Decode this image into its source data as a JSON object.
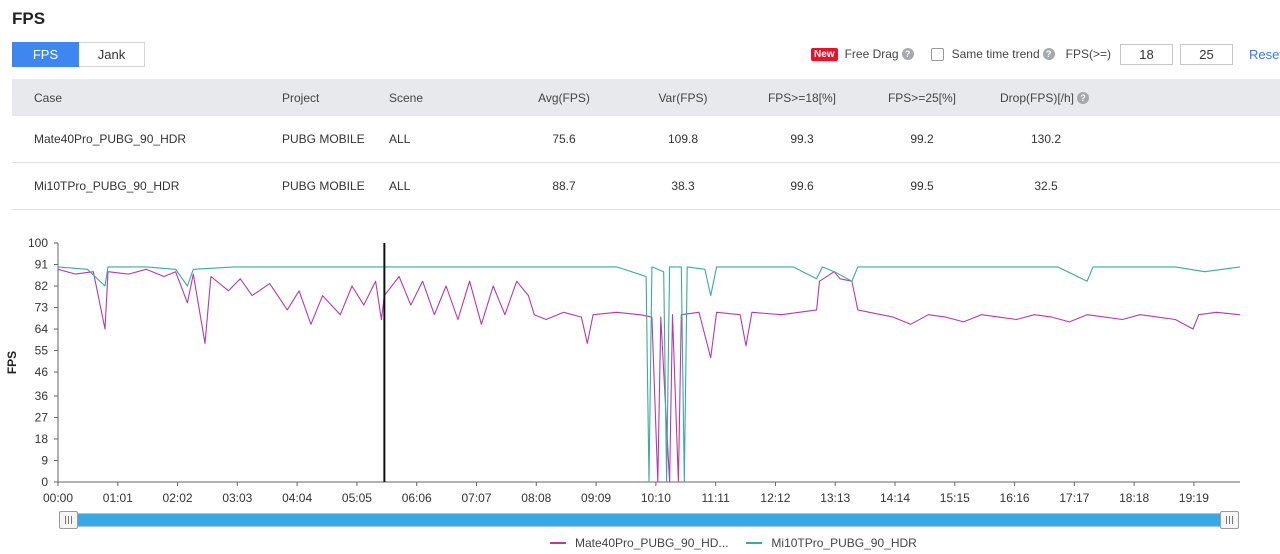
{
  "page": {
    "title": "FPS"
  },
  "tabs": [
    {
      "label": "FPS",
      "active": true
    },
    {
      "label": "Jank",
      "active": false
    }
  ],
  "controls": {
    "new_badge": "New",
    "free_drag": "Free Drag",
    "same_time_trend": "Same time trend",
    "same_time_trend_checked": false,
    "fps_threshold_label": "FPS(>=)",
    "threshold_1": "18",
    "threshold_2": "25",
    "reset": "Reset"
  },
  "table": {
    "headers": [
      "Case",
      "Project",
      "Scene",
      "Avg(FPS)",
      "Var(FPS)",
      "FPS>=18[%]",
      "FPS>=25[%]",
      "Drop(FPS)[/h]"
    ],
    "rows": [
      {
        "case": "Mate40Pro_PUBG_90_HDR",
        "project": "PUBG MOBILE",
        "scene": "ALL",
        "avg": "75.6",
        "var": "109.8",
        "fps18": "99.3",
        "fps25": "99.2",
        "drop": "130.2"
      },
      {
        "case": "Mi10TPro_PUBG_90_HDR",
        "project": "PUBG MOBILE",
        "scene": "ALL",
        "avg": "88.7",
        "var": "38.3",
        "fps18": "99.6",
        "fps25": "99.5",
        "drop": "32.5"
      }
    ]
  },
  "chart_data": {
    "type": "line",
    "ylabel": "FPS",
    "xlabel": "",
    "ylim": [
      0,
      100
    ],
    "yticks": [
      "0",
      "9",
      "18",
      "27",
      "36",
      "46",
      "55",
      "64",
      "73",
      "82",
      "91",
      "100"
    ],
    "xticks": [
      "00:00",
      "01:01",
      "02:02",
      "03:03",
      "04:04",
      "05:05",
      "06:06",
      "07:07",
      "08:08",
      "09:09",
      "10:10",
      "11:11",
      "12:12",
      "13:13",
      "14:14",
      "15:15",
      "16:16",
      "17:17",
      "18:18",
      "19:19"
    ],
    "duration_min": 20.1,
    "cursor_min": 5.55,
    "grid": false,
    "legend_position": "bottom",
    "series": [
      {
        "name": "Mate40Pro_PUBG_90_HD...",
        "color": "#b43ab0",
        "points": [
          [
            0,
            89
          ],
          [
            0.3,
            87
          ],
          [
            0.6,
            88
          ],
          [
            0.8,
            64
          ],
          [
            0.85,
            88
          ],
          [
            1.2,
            87
          ],
          [
            1.5,
            89
          ],
          [
            1.8,
            86
          ],
          [
            2.0,
            88
          ],
          [
            2.2,
            75
          ],
          [
            2.3,
            87
          ],
          [
            2.5,
            58
          ],
          [
            2.6,
            86
          ],
          [
            2.9,
            80
          ],
          [
            3.1,
            85
          ],
          [
            3.3,
            78
          ],
          [
            3.6,
            83
          ],
          [
            3.9,
            72
          ],
          [
            4.1,
            80
          ],
          [
            4.3,
            66
          ],
          [
            4.5,
            78
          ],
          [
            4.8,
            70
          ],
          [
            5.0,
            82
          ],
          [
            5.2,
            74
          ],
          [
            5.4,
            84
          ],
          [
            5.5,
            68
          ],
          [
            5.55,
            78
          ],
          [
            5.8,
            86
          ],
          [
            6.0,
            74
          ],
          [
            6.2,
            84
          ],
          [
            6.4,
            70
          ],
          [
            6.6,
            82
          ],
          [
            6.8,
            68
          ],
          [
            7.0,
            84
          ],
          [
            7.2,
            66
          ],
          [
            7.4,
            82
          ],
          [
            7.6,
            70
          ],
          [
            7.8,
            84
          ],
          [
            8.0,
            78
          ],
          [
            8.1,
            70
          ],
          [
            8.3,
            68
          ],
          [
            8.6,
            71
          ],
          [
            8.9,
            69
          ],
          [
            9.0,
            58
          ],
          [
            9.1,
            70
          ],
          [
            9.5,
            71
          ],
          [
            9.9,
            70
          ],
          [
            10.1,
            69
          ],
          [
            10.2,
            0
          ],
          [
            10.25,
            69
          ],
          [
            10.4,
            0
          ],
          [
            10.45,
            70
          ],
          [
            10.55,
            0
          ],
          [
            10.6,
            70
          ],
          [
            10.9,
            71
          ],
          [
            11.1,
            52
          ],
          [
            11.2,
            71
          ],
          [
            11.6,
            70
          ],
          [
            11.7,
            57
          ],
          [
            11.8,
            71
          ],
          [
            12.3,
            70
          ],
          [
            12.6,
            71
          ],
          [
            12.9,
            72
          ],
          [
            12.95,
            84
          ],
          [
            13.2,
            88
          ],
          [
            13.3,
            85
          ],
          [
            13.5,
            84
          ],
          [
            13.6,
            72
          ],
          [
            13.8,
            71
          ],
          [
            14.2,
            69
          ],
          [
            14.5,
            66
          ],
          [
            14.8,
            70
          ],
          [
            15.1,
            69
          ],
          [
            15.4,
            67
          ],
          [
            15.7,
            70
          ],
          [
            16.0,
            69
          ],
          [
            16.3,
            68
          ],
          [
            16.6,
            70
          ],
          [
            16.9,
            69
          ],
          [
            17.2,
            67
          ],
          [
            17.5,
            70
          ],
          [
            17.8,
            69
          ],
          [
            18.1,
            68
          ],
          [
            18.4,
            70
          ],
          [
            18.7,
            69
          ],
          [
            19.0,
            68
          ],
          [
            19.3,
            64
          ],
          [
            19.4,
            70
          ],
          [
            19.7,
            71
          ],
          [
            20.1,
            70
          ]
        ]
      },
      {
        "name": "Mi10TPro_PUBG_90_HDR",
        "color": "#3aab9c",
        "points": [
          [
            0,
            90
          ],
          [
            0.5,
            89
          ],
          [
            0.8,
            82
          ],
          [
            0.85,
            90
          ],
          [
            1.5,
            90
          ],
          [
            2.0,
            89
          ],
          [
            2.2,
            82
          ],
          [
            2.3,
            89
          ],
          [
            3.0,
            90
          ],
          [
            4.0,
            90
          ],
          [
            5.0,
            90
          ],
          [
            5.5,
            90
          ],
          [
            6.0,
            90
          ],
          [
            7.0,
            90
          ],
          [
            8.0,
            90
          ],
          [
            9.0,
            90
          ],
          [
            9.5,
            90
          ],
          [
            10.0,
            86
          ],
          [
            10.05,
            0
          ],
          [
            10.1,
            90
          ],
          [
            10.3,
            88
          ],
          [
            10.35,
            0
          ],
          [
            10.4,
            90
          ],
          [
            10.6,
            90
          ],
          [
            10.65,
            0
          ],
          [
            10.7,
            90
          ],
          [
            11.0,
            89
          ],
          [
            11.1,
            78
          ],
          [
            11.2,
            90
          ],
          [
            12.0,
            90
          ],
          [
            12.5,
            90
          ],
          [
            12.9,
            85
          ],
          [
            13.0,
            90
          ],
          [
            13.2,
            88
          ],
          [
            13.5,
            84
          ],
          [
            13.6,
            90
          ],
          [
            14.0,
            90
          ],
          [
            15.0,
            90
          ],
          [
            16.0,
            90
          ],
          [
            17.0,
            90
          ],
          [
            17.5,
            84
          ],
          [
            17.6,
            90
          ],
          [
            18.0,
            90
          ],
          [
            19.0,
            90
          ],
          [
            19.5,
            88
          ],
          [
            20.1,
            90
          ]
        ]
      }
    ]
  }
}
